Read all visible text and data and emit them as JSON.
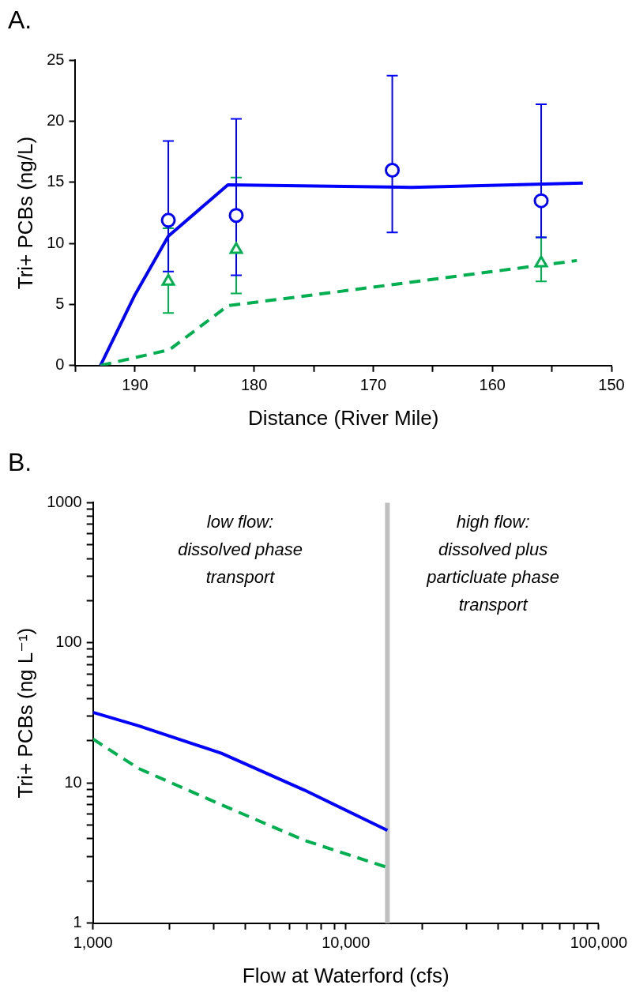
{
  "chart_data": [
    {
      "type": "line",
      "title": "A.",
      "xlabel": "Distance (River Mile)",
      "ylabel": "Tri+ PCBs (ng/L)",
      "xlim": [
        195,
        150
      ],
      "xticks": [
        {
          "value": 195,
          "label": null
        },
        190,
        {
          "value": 185,
          "label": null
        },
        180,
        {
          "value": 175,
          "label": null
        },
        170,
        {
          "value": 165,
          "label": null
        },
        160,
        {
          "value": 155,
          "label": null
        },
        150
      ],
      "ylim": [
        0,
        25
      ],
      "yticks": [
        0,
        5,
        10,
        15,
        20,
        25
      ],
      "grid": false,
      "legend": false,
      "series": [
        {
          "color": "#0000ff",
          "marker": "none",
          "line_style": "solid",
          "x": [
            192.9,
            190,
            187.2,
            182.2,
            166.8,
            152.4
          ],
          "values": [
            0,
            5.8,
            10.6,
            14.8,
            14.6,
            14.95
          ]
        },
        {
          "color": "#00b050",
          "marker": "none",
          "line_style": "dashed",
          "x": [
            192.9,
            187.1,
            182.2,
            176.5,
            152.9
          ],
          "values": [
            0,
            1.3,
            4.9,
            5.6,
            8.6
          ]
        },
        {
          "type": "scatter",
          "color": "#00b050",
          "marker": "triangle",
          "x": [
            187.2,
            181.5,
            155.9
          ],
          "values": [
            6.9,
            9.5,
            8.4
          ],
          "errors": [
            [
              4.3,
              11.25
            ],
            [
              5.9,
              15.4
            ],
            [
              6.9,
              10.5
            ]
          ]
        },
        {
          "type": "scatter",
          "color": "#0000ff",
          "marker": "circle",
          "x": [
            187.2,
            181.5,
            168.4,
            155.9
          ],
          "values": [
            11.9,
            12.3,
            16.0,
            13.5
          ],
          "errors": [
            [
              7.7,
              18.4
            ],
            [
              7.4,
              20.2
            ],
            [
              10.9,
              23.75
            ],
            [
              10.5,
              21.4
            ]
          ]
        }
      ]
    },
    {
      "type": "line",
      "title": "B.",
      "xlabel": "Flow at Waterford (cfs)",
      "ylabel": "Tri+ PCBs (ng L⁻¹)",
      "log": "xy",
      "xlim": [
        1000,
        100000
      ],
      "xticks": [
        {
          "value": 1000,
          "label": "1,000"
        },
        {
          "value": 2000,
          "label": null
        },
        {
          "value": 3000,
          "label": null
        },
        {
          "value": 4000,
          "label": null
        },
        {
          "value": 5000,
          "label": null
        },
        {
          "value": 6000,
          "label": null
        },
        {
          "value": 7000,
          "label": null
        },
        {
          "value": 8000,
          "label": null
        },
        {
          "value": 9000,
          "label": null
        },
        {
          "value": 10000,
          "label": "10,000"
        },
        {
          "value": 20000,
          "label": null
        },
        {
          "value": 30000,
          "label": null
        },
        {
          "value": 40000,
          "label": null
        },
        {
          "value": 50000,
          "label": null
        },
        {
          "value": 60000,
          "label": null
        },
        {
          "value": 70000,
          "label": null
        },
        {
          "value": 80000,
          "label": null
        },
        {
          "value": 90000,
          "label": null
        },
        {
          "value": 100000,
          "label": "100,000"
        }
      ],
      "ylim": [
        1,
        1000
      ],
      "yticks": [
        1,
        {
          "value": 2,
          "label": null
        },
        {
          "value": 3,
          "label": null
        },
        {
          "value": 4,
          "label": null
        },
        {
          "value": 5,
          "label": null
        },
        {
          "value": 6,
          "label": null
        },
        {
          "value": 7,
          "label": null
        },
        {
          "value": 8,
          "label": null
        },
        {
          "value": 9,
          "label": null
        },
        10,
        {
          "value": 20,
          "label": null
        },
        {
          "value": 30,
          "label": null
        },
        {
          "value": 40,
          "label": null
        },
        {
          "value": 50,
          "label": null
        },
        {
          "value": 60,
          "label": null
        },
        {
          "value": 70,
          "label": null
        },
        {
          "value": 80,
          "label": null
        },
        {
          "value": 90,
          "label": null
        },
        100,
        {
          "value": 200,
          "label": null
        },
        {
          "value": 300,
          "label": null
        },
        {
          "value": 400,
          "label": null
        },
        {
          "value": 500,
          "label": null
        },
        {
          "value": 600,
          "label": null
        },
        {
          "value": 700,
          "label": null
        },
        {
          "value": 800,
          "label": null
        },
        {
          "value": 900,
          "label": null
        },
        1000
      ],
      "grid": false,
      "legend": false,
      "ref_lines": [
        {
          "axis": "x",
          "value": 14600,
          "color": "#bfbfbf"
        }
      ],
      "annotations": [
        "low flow:\ndissolved phase\ntransport",
        "high flow:\ndissolved plus\nparticluate phase\ntransport"
      ],
      "series": [
        {
          "color": "#0000ff",
          "line_style": "solid",
          "marker": "none",
          "x": [
            1000,
            1515,
            3220,
            6860,
            14600
          ],
          "values": [
            31.9,
            25.6,
            16.3,
            8.9,
            4.6
          ]
        },
        {
          "color": "#00b050",
          "line_style": "dashed",
          "marker": "none",
          "x": [
            1000,
            1515,
            3220,
            6860,
            14600
          ],
          "values": [
            20.6,
            12.7,
            7.0,
            3.9,
            2.5
          ]
        }
      ]
    }
  ]
}
